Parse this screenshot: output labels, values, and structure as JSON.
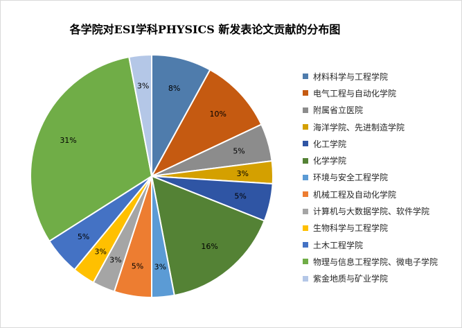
{
  "chart_data": {
    "type": "pie",
    "title": "各学院对ESI学科PHYSICS 新发表论文贡献的分布图",
    "legend_position": "right",
    "slices": [
      {
        "name": "材料科学与工程学院",
        "value": 8,
        "label": "8%",
        "color": "#4F7CAC"
      },
      {
        "name": "电气工程与自动化学院",
        "value": 10,
        "label": "10%",
        "color": "#C55A11"
      },
      {
        "name": "附属省立医院",
        "value": 5,
        "label": "5%",
        "color": "#8C8C8C"
      },
      {
        "name": "海洋学院、先进制造学院",
        "value": 3,
        "label": "3%",
        "color": "#D4A000"
      },
      {
        "name": "化工学院",
        "value": 5,
        "label": "5%",
        "color": "#2F55A4"
      },
      {
        "name": "化学学院",
        "value": 16,
        "label": "16%",
        "color": "#548235"
      },
      {
        "name": "环境与安全工程学院",
        "value": 3,
        "label": "3%",
        "color": "#5B9BD5"
      },
      {
        "name": "机械工程及自动化学院",
        "value": 5,
        "label": "5%",
        "color": "#ED7D31"
      },
      {
        "name": "计算机与大数据学院、软件学院",
        "value": 3,
        "label": "3%",
        "color": "#A5A5A5"
      },
      {
        "name": "生物科学与工程学院",
        "value": 3,
        "label": "3%",
        "color": "#FFC000"
      },
      {
        "name": "土木工程学院",
        "value": 5,
        "label": "5%",
        "color": "#4472C4"
      },
      {
        "name": "物理与信息工程学院、微电子学院",
        "value": 31,
        "label": "31%",
        "color": "#70AD47"
      },
      {
        "name": "紫金地质与矿业学院",
        "value": 3,
        "label": "3%",
        "color": "#B4C7E7"
      }
    ]
  }
}
